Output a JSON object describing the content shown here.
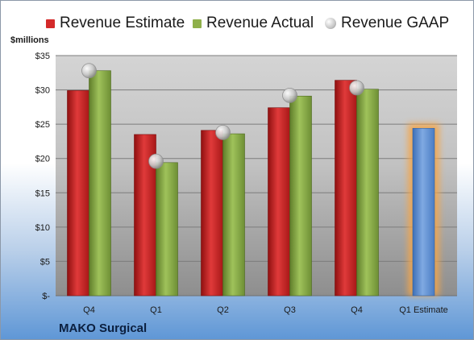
{
  "legend": {
    "estimate": "Revenue Estimate",
    "actual": "Revenue Actual",
    "gaap": "Revenue GAAP"
  },
  "unit_label": "$millions",
  "company": "MAKO Surgical",
  "colors": {
    "estimate": "#d42a2a",
    "actual": "#8fb04a",
    "gaap": "#c8c8c8",
    "forecast": "#5b8fd4",
    "forecast_glow": "#f5a64a"
  },
  "chart_data": {
    "type": "bar",
    "categories": [
      "Q4",
      "Q1",
      "Q2",
      "Q3",
      "Q4",
      "Q1 Estimate"
    ],
    "ylim": [
      0,
      35
    ],
    "yticks": [
      {
        "value": 0,
        "label": "$-"
      },
      {
        "value": 5,
        "label": "$5"
      },
      {
        "value": 10,
        "label": "$10"
      },
      {
        "value": 15,
        "label": "$15"
      },
      {
        "value": 20,
        "label": "$20"
      },
      {
        "value": 25,
        "label": "$25"
      },
      {
        "value": 30,
        "label": "$30"
      },
      {
        "value": 35,
        "label": "$35"
      }
    ],
    "grid": true,
    "legend_position": "top",
    "series": [
      {
        "name": "Revenue Estimate",
        "values": [
          29.9,
          23.5,
          24.1,
          27.4,
          31.4,
          null
        ]
      },
      {
        "name": "Revenue Actual",
        "values": [
          32.8,
          19.4,
          23.6,
          29.1,
          30.1,
          null
        ]
      },
      {
        "name": "Revenue GAAP",
        "values": [
          32.8,
          19.6,
          23.8,
          29.2,
          30.3,
          null
        ]
      }
    ],
    "forecast": {
      "category": "Q1 Estimate",
      "value": 24.4
    }
  }
}
